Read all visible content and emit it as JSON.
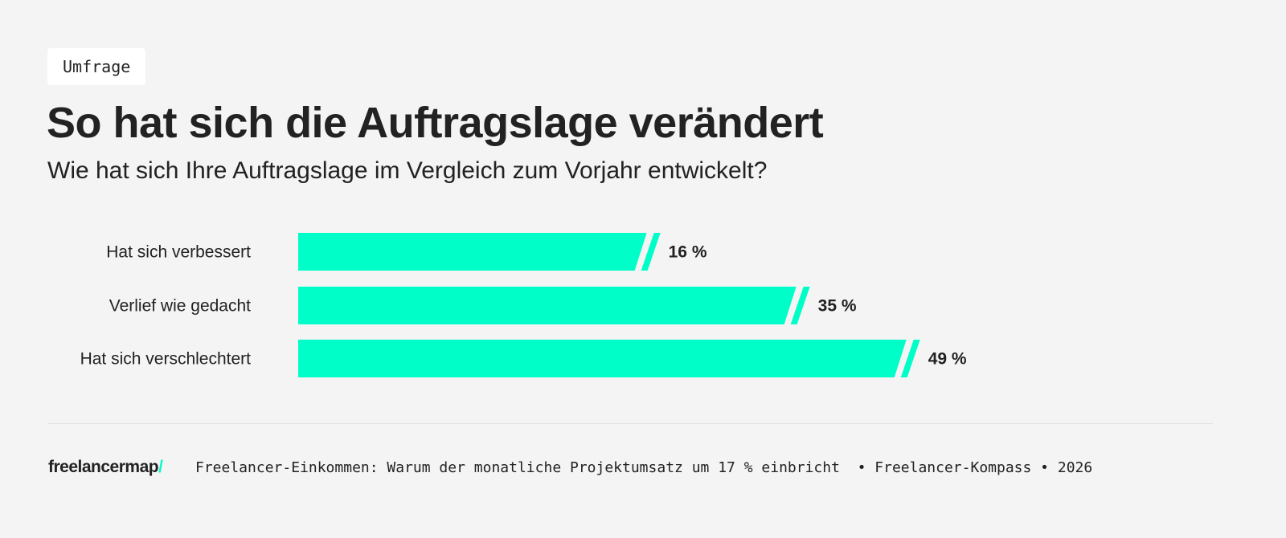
{
  "tag": "Umfrage",
  "title": "So hat sich die Auftragslage verändert",
  "subtitle": "Wie hat sich Ihre Auftragslage im Vergleich zum Vorjahr entwickelt?",
  "colors": {
    "bar": "#00ffc8",
    "background": "#f4f4f4"
  },
  "chart_data": {
    "type": "bar",
    "orientation": "horizontal",
    "categories": [
      "Hat sich verbessert",
      "Verlief wie gedacht",
      "Hat sich verschlechtert"
    ],
    "values": [
      16,
      35,
      49
    ],
    "value_labels": [
      "16 %",
      "35 %",
      "49 %"
    ],
    "unit": "%",
    "axis_break": true,
    "grid": false
  },
  "footer": {
    "logo": "freelancermap",
    "logo_slash": "/",
    "source": "Freelancer-Einkommen: Warum der monatliche Projektumsatz um 17 % einbricht  • Freelancer-Kompass • 2026"
  }
}
